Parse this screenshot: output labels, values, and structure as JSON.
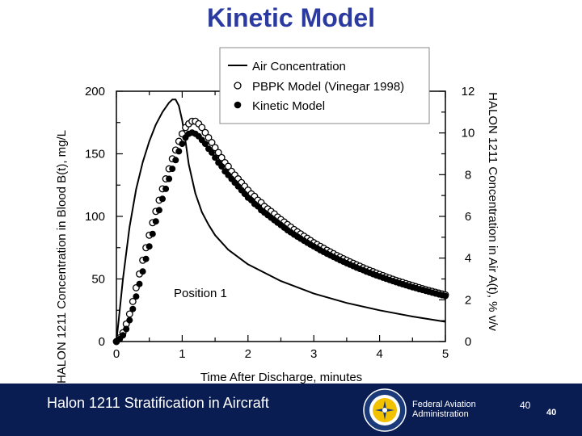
{
  "slide": {
    "title": "Kinetic Model"
  },
  "footer": {
    "title": "Halon 1211 Stratification in Aircraft",
    "agency_line1": "Federal Aviation",
    "agency_line2": "Administration",
    "page_number": "40",
    "page_number_alt": "40"
  },
  "colors": {
    "title": "#2b3aa0",
    "footer_bg": "#0a1d52",
    "footer_text": "#ffffff",
    "plot": "#000000"
  },
  "chart_data": {
    "type": "line",
    "xlabel": "Time After Discharge, minutes",
    "ylabel_left": "HALON 1211 Concentration in Blood B(t), mg/L",
    "ylabel_right": "HALON 1211 Concentration in Air A(t), % v/v",
    "xlim": [
      0,
      5
    ],
    "ylim_left": [
      0,
      200
    ],
    "ylim_right": [
      0,
      12
    ],
    "xticks": [
      "0",
      "1",
      "2",
      "3",
      "4",
      "5"
    ],
    "yticks_left": [
      "0",
      "50",
      "100",
      "150",
      "200"
    ],
    "yticks_right": [
      "0",
      "2",
      "4",
      "6",
      "8",
      "10",
      "12"
    ],
    "annotation": "Position 1",
    "legend": [
      "Air Concentration",
      "PBPK Model (Vinegar 1998)",
      "Kinetic Model"
    ],
    "series": [
      {
        "name": "Air Concentration",
        "axis": "right",
        "style": "line",
        "x": [
          0,
          0.05,
          0.1,
          0.2,
          0.3,
          0.4,
          0.5,
          0.6,
          0.7,
          0.8,
          0.85,
          0.9,
          0.95,
          1.0,
          1.05,
          1.1,
          1.2,
          1.3,
          1.4,
          1.5,
          1.7,
          2.0,
          2.5,
          3.0,
          3.5,
          4.0,
          4.5,
          5.0
        ],
        "values": [
          0,
          1.5,
          3.0,
          5.5,
          7.3,
          8.6,
          9.6,
          10.4,
          11.0,
          11.45,
          11.6,
          11.6,
          11.3,
          10.6,
          9.6,
          8.5,
          7.1,
          6.2,
          5.6,
          5.1,
          4.4,
          3.7,
          2.9,
          2.3,
          1.85,
          1.5,
          1.2,
          0.95
        ]
      },
      {
        "name": "PBPK Model (Vinegar 1998)",
        "axis": "left",
        "style": "open-markers",
        "x": [
          0,
          0.05,
          0.1,
          0.15,
          0.2,
          0.25,
          0.3,
          0.35,
          0.4,
          0.45,
          0.5,
          0.55,
          0.6,
          0.65,
          0.7,
          0.75,
          0.8,
          0.85,
          0.9,
          0.95,
          1.0,
          1.05,
          1.1,
          1.15,
          1.2,
          1.25,
          1.3,
          1.35,
          1.4,
          1.45,
          1.5,
          1.55,
          1.6,
          1.65,
          1.7,
          1.75,
          1.8,
          1.85,
          1.9,
          1.95,
          2.0,
          2.05,
          2.1,
          2.15,
          2.2,
          2.25,
          2.3,
          2.35,
          2.4,
          2.45,
          2.5,
          2.55,
          2.6,
          2.65,
          2.7,
          2.75,
          2.8,
          2.85,
          2.9,
          2.95,
          3.0,
          3.05,
          3.1,
          3.15,
          3.2,
          3.25,
          3.3,
          3.35,
          3.4,
          3.45,
          3.5,
          3.55,
          3.6,
          3.65,
          3.7,
          3.75,
          3.8,
          3.85,
          3.9,
          3.95,
          4.0,
          4.05,
          4.1,
          4.15,
          4.2,
          4.25,
          4.3,
          4.35,
          4.4,
          4.45,
          4.5,
          4.55,
          4.6,
          4.65,
          4.7,
          4.75,
          4.8,
          4.85,
          4.9,
          4.95,
          5.0
        ],
        "values": [
          0,
          3,
          7,
          14,
          22,
          32,
          43,
          54,
          65,
          75,
          85,
          95,
          104,
          113,
          122,
          130,
          138,
          146,
          153,
          160,
          166,
          171,
          174,
          176,
          176,
          174,
          171,
          167,
          163,
          159,
          155,
          151,
          147,
          143,
          140,
          136,
          133,
          130,
          127,
          124,
          121,
          118,
          116,
          113,
          111,
          108,
          106,
          104,
          102,
          99.5,
          97.5,
          95.5,
          93.5,
          91.5,
          89.5,
          87.7,
          86,
          84.2,
          82.5,
          80.8,
          79,
          77.5,
          76,
          74.5,
          73,
          71.6,
          70.2,
          68.8,
          67.5,
          66.2,
          65,
          63.7,
          62.5,
          61.3,
          60.2,
          59,
          57.9,
          56.8,
          55.8,
          54.7,
          53.7,
          52.7,
          51.7,
          50.8,
          49.8,
          48.9,
          48,
          47.2,
          46.3,
          45.5,
          44.7,
          43.9,
          43.1,
          42.3,
          41.5,
          40.8,
          40.1,
          39.4,
          38.7,
          38,
          37.3
        ]
      },
      {
        "name": "Kinetic Model",
        "axis": "left",
        "style": "filled-markers",
        "x": [
          0,
          0.05,
          0.1,
          0.15,
          0.2,
          0.25,
          0.3,
          0.35,
          0.4,
          0.45,
          0.5,
          0.55,
          0.6,
          0.65,
          0.7,
          0.75,
          0.8,
          0.85,
          0.9,
          0.95,
          1.0,
          1.05,
          1.1,
          1.15,
          1.2,
          1.25,
          1.3,
          1.35,
          1.4,
          1.45,
          1.5,
          1.55,
          1.6,
          1.65,
          1.7,
          1.75,
          1.8,
          1.85,
          1.9,
          1.95,
          2.0,
          2.05,
          2.1,
          2.15,
          2.2,
          2.25,
          2.3,
          2.35,
          2.4,
          2.45,
          2.5,
          2.55,
          2.6,
          2.65,
          2.7,
          2.75,
          2.8,
          2.85,
          2.9,
          2.95,
          3.0,
          3.05,
          3.1,
          3.15,
          3.2,
          3.25,
          3.3,
          3.35,
          3.4,
          3.45,
          3.5,
          3.55,
          3.6,
          3.65,
          3.7,
          3.75,
          3.8,
          3.85,
          3.9,
          3.95,
          4.0,
          4.05,
          4.1,
          4.15,
          4.2,
          4.25,
          4.3,
          4.35,
          4.4,
          4.45,
          4.5,
          4.55,
          4.6,
          4.65,
          4.7,
          4.75,
          4.8,
          4.85,
          4.9,
          4.95,
          5.0
        ],
        "values": [
          0,
          2,
          5,
          10,
          17,
          26,
          36,
          46,
          56,
          66,
          76,
          86,
          96,
          105,
          114,
          122,
          130,
          138,
          145,
          152,
          158,
          163,
          166,
          167,
          166,
          164,
          161,
          158,
          154,
          151,
          147,
          143,
          140,
          136,
          133,
          130,
          127,
          124,
          121,
          118,
          115,
          113,
          110,
          108,
          105,
          103,
          101,
          99,
          97,
          95,
          93,
          91,
          89,
          87.3,
          85.5,
          83.8,
          82.2,
          80.6,
          79,
          77.5,
          76,
          74.5,
          73,
          71.6,
          70.2,
          68.9,
          67.6,
          66.3,
          65,
          63.8,
          62.6,
          61.4,
          60.3,
          59.1,
          58,
          57,
          55.9,
          54.9,
          53.9,
          52.9,
          52,
          51,
          50.1,
          49.2,
          48.3,
          47.5,
          46.6,
          45.8,
          45,
          44.2,
          43.4,
          42.7,
          41.9,
          41.2,
          40.5,
          39.8,
          39.1,
          38.4,
          37.7,
          37,
          36.4
        ]
      }
    ]
  }
}
